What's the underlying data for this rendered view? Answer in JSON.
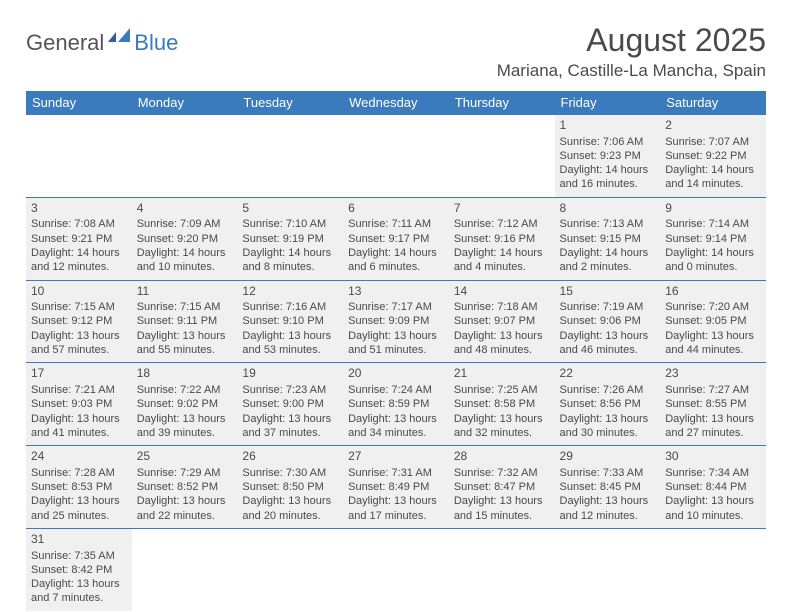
{
  "brand": {
    "text1": "General",
    "text2": "Blue"
  },
  "title": "August 2025",
  "location": "Mariana, Castille-La Mancha, Spain",
  "colors": {
    "header_bg": "#3a7abd",
    "cell_fill": "#f0f0f0",
    "text": "#4a4a4a"
  },
  "day_headers": [
    "Sunday",
    "Monday",
    "Tuesday",
    "Wednesday",
    "Thursday",
    "Friday",
    "Saturday"
  ],
  "weeks": [
    [
      null,
      null,
      null,
      null,
      null,
      {
        "n": "1",
        "sr": "Sunrise: 7:06 AM",
        "ss": "Sunset: 9:23 PM",
        "d1": "Daylight: 14 hours",
        "d2": "and 16 minutes."
      },
      {
        "n": "2",
        "sr": "Sunrise: 7:07 AM",
        "ss": "Sunset: 9:22 PM",
        "d1": "Daylight: 14 hours",
        "d2": "and 14 minutes."
      }
    ],
    [
      {
        "n": "3",
        "sr": "Sunrise: 7:08 AM",
        "ss": "Sunset: 9:21 PM",
        "d1": "Daylight: 14 hours",
        "d2": "and 12 minutes."
      },
      {
        "n": "4",
        "sr": "Sunrise: 7:09 AM",
        "ss": "Sunset: 9:20 PM",
        "d1": "Daylight: 14 hours",
        "d2": "and 10 minutes."
      },
      {
        "n": "5",
        "sr": "Sunrise: 7:10 AM",
        "ss": "Sunset: 9:19 PM",
        "d1": "Daylight: 14 hours",
        "d2": "and 8 minutes."
      },
      {
        "n": "6",
        "sr": "Sunrise: 7:11 AM",
        "ss": "Sunset: 9:17 PM",
        "d1": "Daylight: 14 hours",
        "d2": "and 6 minutes."
      },
      {
        "n": "7",
        "sr": "Sunrise: 7:12 AM",
        "ss": "Sunset: 9:16 PM",
        "d1": "Daylight: 14 hours",
        "d2": "and 4 minutes."
      },
      {
        "n": "8",
        "sr": "Sunrise: 7:13 AM",
        "ss": "Sunset: 9:15 PM",
        "d1": "Daylight: 14 hours",
        "d2": "and 2 minutes."
      },
      {
        "n": "9",
        "sr": "Sunrise: 7:14 AM",
        "ss": "Sunset: 9:14 PM",
        "d1": "Daylight: 14 hours",
        "d2": "and 0 minutes."
      }
    ],
    [
      {
        "n": "10",
        "sr": "Sunrise: 7:15 AM",
        "ss": "Sunset: 9:12 PM",
        "d1": "Daylight: 13 hours",
        "d2": "and 57 minutes."
      },
      {
        "n": "11",
        "sr": "Sunrise: 7:15 AM",
        "ss": "Sunset: 9:11 PM",
        "d1": "Daylight: 13 hours",
        "d2": "and 55 minutes."
      },
      {
        "n": "12",
        "sr": "Sunrise: 7:16 AM",
        "ss": "Sunset: 9:10 PM",
        "d1": "Daylight: 13 hours",
        "d2": "and 53 minutes."
      },
      {
        "n": "13",
        "sr": "Sunrise: 7:17 AM",
        "ss": "Sunset: 9:09 PM",
        "d1": "Daylight: 13 hours",
        "d2": "and 51 minutes."
      },
      {
        "n": "14",
        "sr": "Sunrise: 7:18 AM",
        "ss": "Sunset: 9:07 PM",
        "d1": "Daylight: 13 hours",
        "d2": "and 48 minutes."
      },
      {
        "n": "15",
        "sr": "Sunrise: 7:19 AM",
        "ss": "Sunset: 9:06 PM",
        "d1": "Daylight: 13 hours",
        "d2": "and 46 minutes."
      },
      {
        "n": "16",
        "sr": "Sunrise: 7:20 AM",
        "ss": "Sunset: 9:05 PM",
        "d1": "Daylight: 13 hours",
        "d2": "and 44 minutes."
      }
    ],
    [
      {
        "n": "17",
        "sr": "Sunrise: 7:21 AM",
        "ss": "Sunset: 9:03 PM",
        "d1": "Daylight: 13 hours",
        "d2": "and 41 minutes."
      },
      {
        "n": "18",
        "sr": "Sunrise: 7:22 AM",
        "ss": "Sunset: 9:02 PM",
        "d1": "Daylight: 13 hours",
        "d2": "and 39 minutes."
      },
      {
        "n": "19",
        "sr": "Sunrise: 7:23 AM",
        "ss": "Sunset: 9:00 PM",
        "d1": "Daylight: 13 hours",
        "d2": "and 37 minutes."
      },
      {
        "n": "20",
        "sr": "Sunrise: 7:24 AM",
        "ss": "Sunset: 8:59 PM",
        "d1": "Daylight: 13 hours",
        "d2": "and 34 minutes."
      },
      {
        "n": "21",
        "sr": "Sunrise: 7:25 AM",
        "ss": "Sunset: 8:58 PM",
        "d1": "Daylight: 13 hours",
        "d2": "and 32 minutes."
      },
      {
        "n": "22",
        "sr": "Sunrise: 7:26 AM",
        "ss": "Sunset: 8:56 PM",
        "d1": "Daylight: 13 hours",
        "d2": "and 30 minutes."
      },
      {
        "n": "23",
        "sr": "Sunrise: 7:27 AM",
        "ss": "Sunset: 8:55 PM",
        "d1": "Daylight: 13 hours",
        "d2": "and 27 minutes."
      }
    ],
    [
      {
        "n": "24",
        "sr": "Sunrise: 7:28 AM",
        "ss": "Sunset: 8:53 PM",
        "d1": "Daylight: 13 hours",
        "d2": "and 25 minutes."
      },
      {
        "n": "25",
        "sr": "Sunrise: 7:29 AM",
        "ss": "Sunset: 8:52 PM",
        "d1": "Daylight: 13 hours",
        "d2": "and 22 minutes."
      },
      {
        "n": "26",
        "sr": "Sunrise: 7:30 AM",
        "ss": "Sunset: 8:50 PM",
        "d1": "Daylight: 13 hours",
        "d2": "and 20 minutes."
      },
      {
        "n": "27",
        "sr": "Sunrise: 7:31 AM",
        "ss": "Sunset: 8:49 PM",
        "d1": "Daylight: 13 hours",
        "d2": "and 17 minutes."
      },
      {
        "n": "28",
        "sr": "Sunrise: 7:32 AM",
        "ss": "Sunset: 8:47 PM",
        "d1": "Daylight: 13 hours",
        "d2": "and 15 minutes."
      },
      {
        "n": "29",
        "sr": "Sunrise: 7:33 AM",
        "ss": "Sunset: 8:45 PM",
        "d1": "Daylight: 13 hours",
        "d2": "and 12 minutes."
      },
      {
        "n": "30",
        "sr": "Sunrise: 7:34 AM",
        "ss": "Sunset: 8:44 PM",
        "d1": "Daylight: 13 hours",
        "d2": "and 10 minutes."
      }
    ],
    [
      {
        "n": "31",
        "sr": "Sunrise: 7:35 AM",
        "ss": "Sunset: 8:42 PM",
        "d1": "Daylight: 13 hours",
        "d2": "and 7 minutes."
      },
      null,
      null,
      null,
      null,
      null,
      null
    ]
  ]
}
